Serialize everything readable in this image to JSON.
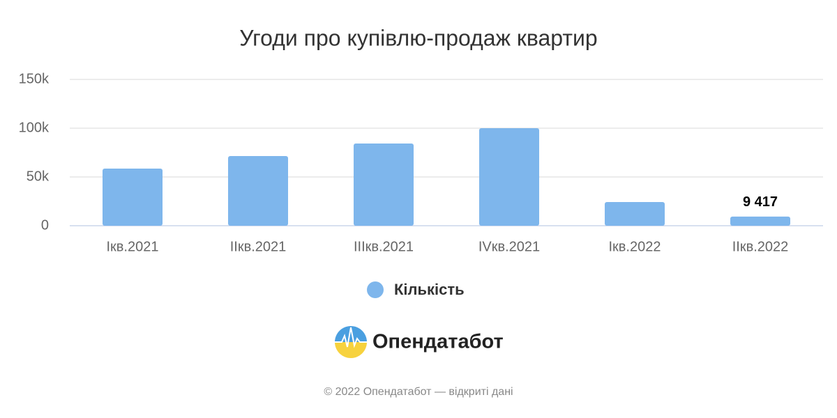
{
  "chart_data": {
    "type": "bar",
    "title": "Угоди про купівлю-продаж квартир",
    "categories": [
      "Ікв.2021",
      "ІІкв.2021",
      "ІІІкв.2021",
      "IVкв.2021",
      "Ікв.2022",
      "ІІкв.2022"
    ],
    "series": [
      {
        "name": "Кількість",
        "color": "#7eb6ec",
        "values": [
          58600,
          71400,
          84300,
          100000,
          24300,
          9417
        ],
        "value_labels": [
          null,
          null,
          null,
          null,
          null,
          "9 417"
        ]
      }
    ],
    "ylim": [
      0,
      150000
    ],
    "yticks": [
      0,
      {
        "value": 50000,
        "label": "50k"
      },
      {
        "value": 100000,
        "label": "100k"
      },
      {
        "value": 150000,
        "label": "150k"
      }
    ],
    "grid": true,
    "legend": "bottom"
  },
  "logo": "Опендатабот",
  "footer": "© 2022 Опендатабот — відкриті дані"
}
